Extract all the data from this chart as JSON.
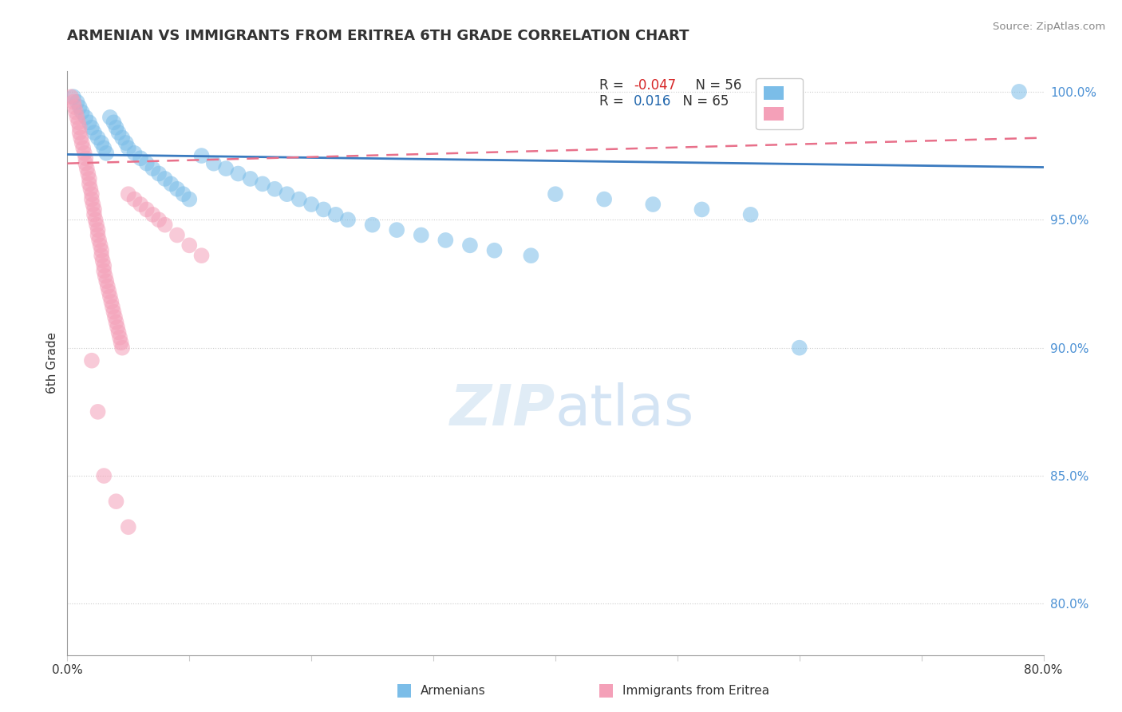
{
  "title": "ARMENIAN VS IMMIGRANTS FROM ERITREA 6TH GRADE CORRELATION CHART",
  "source": "Source: ZipAtlas.com",
  "ylabel": "6th Grade",
  "xlim": [
    0.0,
    0.8
  ],
  "ylim": [
    0.78,
    1.008
  ],
  "yticks": [
    0.8,
    0.85,
    0.9,
    0.95,
    1.0
  ],
  "ytick_labels": [
    "80.0%",
    "85.0%",
    "90.0%",
    "95.0%",
    "100.0%"
  ],
  "xticks": [
    0.0,
    0.1,
    0.2,
    0.3,
    0.4,
    0.5,
    0.6,
    0.7,
    0.8
  ],
  "xtick_labels": [
    "0.0%",
    "",
    "",
    "",
    "",
    "",
    "",
    "",
    "80.0%"
  ],
  "blue_color": "#7bbde8",
  "pink_color": "#f4a0b8",
  "blue_line_color": "#3a7abf",
  "pink_line_color": "#e8708a",
  "watermark_zip": "ZIP",
  "watermark_atlas": "atlas",
  "bottom_legend_blue": "Armenians",
  "bottom_legend_pink": "Immigrants from Eritrea",
  "blue_x": [
    0.005,
    0.008,
    0.01,
    0.012,
    0.015,
    0.018,
    0.02,
    0.022,
    0.025,
    0.028,
    0.03,
    0.032,
    0.035,
    0.038,
    0.04,
    0.042,
    0.045,
    0.048,
    0.05,
    0.055,
    0.06,
    0.065,
    0.07,
    0.075,
    0.08,
    0.085,
    0.09,
    0.095,
    0.1,
    0.11,
    0.12,
    0.13,
    0.14,
    0.15,
    0.16,
    0.17,
    0.18,
    0.19,
    0.2,
    0.21,
    0.22,
    0.23,
    0.25,
    0.27,
    0.29,
    0.31,
    0.33,
    0.35,
    0.38,
    0.4,
    0.44,
    0.48,
    0.52,
    0.56,
    0.6,
    0.78
  ],
  "blue_y": [
    0.998,
    0.996,
    0.994,
    0.992,
    0.99,
    0.988,
    0.986,
    0.984,
    0.982,
    0.98,
    0.978,
    0.976,
    0.99,
    0.988,
    0.986,
    0.984,
    0.982,
    0.98,
    0.978,
    0.976,
    0.974,
    0.972,
    0.97,
    0.968,
    0.966,
    0.964,
    0.962,
    0.96,
    0.958,
    0.975,
    0.972,
    0.97,
    0.968,
    0.966,
    0.964,
    0.962,
    0.96,
    0.958,
    0.956,
    0.954,
    0.952,
    0.95,
    0.948,
    0.946,
    0.944,
    0.942,
    0.94,
    0.938,
    0.936,
    0.96,
    0.958,
    0.956,
    0.954,
    0.952,
    0.9,
    1.0
  ],
  "pink_x": [
    0.003,
    0.005,
    0.006,
    0.007,
    0.008,
    0.009,
    0.01,
    0.01,
    0.011,
    0.012,
    0.013,
    0.014,
    0.015,
    0.015,
    0.016,
    0.017,
    0.018,
    0.018,
    0.019,
    0.02,
    0.02,
    0.021,
    0.022,
    0.022,
    0.023,
    0.024,
    0.025,
    0.025,
    0.026,
    0.027,
    0.028,
    0.028,
    0.029,
    0.03,
    0.03,
    0.031,
    0.032,
    0.033,
    0.034,
    0.035,
    0.036,
    0.037,
    0.038,
    0.039,
    0.04,
    0.041,
    0.042,
    0.043,
    0.044,
    0.045,
    0.05,
    0.055,
    0.06,
    0.065,
    0.07,
    0.075,
    0.08,
    0.09,
    0.1,
    0.11,
    0.02,
    0.025,
    0.03,
    0.04,
    0.05
  ],
  "pink_y": [
    0.998,
    0.996,
    0.994,
    0.992,
    0.99,
    0.988,
    0.986,
    0.984,
    0.982,
    0.98,
    0.978,
    0.976,
    0.974,
    0.972,
    0.97,
    0.968,
    0.966,
    0.964,
    0.962,
    0.96,
    0.958,
    0.956,
    0.954,
    0.952,
    0.95,
    0.948,
    0.946,
    0.944,
    0.942,
    0.94,
    0.938,
    0.936,
    0.934,
    0.932,
    0.93,
    0.928,
    0.926,
    0.924,
    0.922,
    0.92,
    0.918,
    0.916,
    0.914,
    0.912,
    0.91,
    0.908,
    0.906,
    0.904,
    0.902,
    0.9,
    0.96,
    0.958,
    0.956,
    0.954,
    0.952,
    0.95,
    0.948,
    0.944,
    0.94,
    0.936,
    0.895,
    0.875,
    0.85,
    0.84,
    0.83
  ]
}
